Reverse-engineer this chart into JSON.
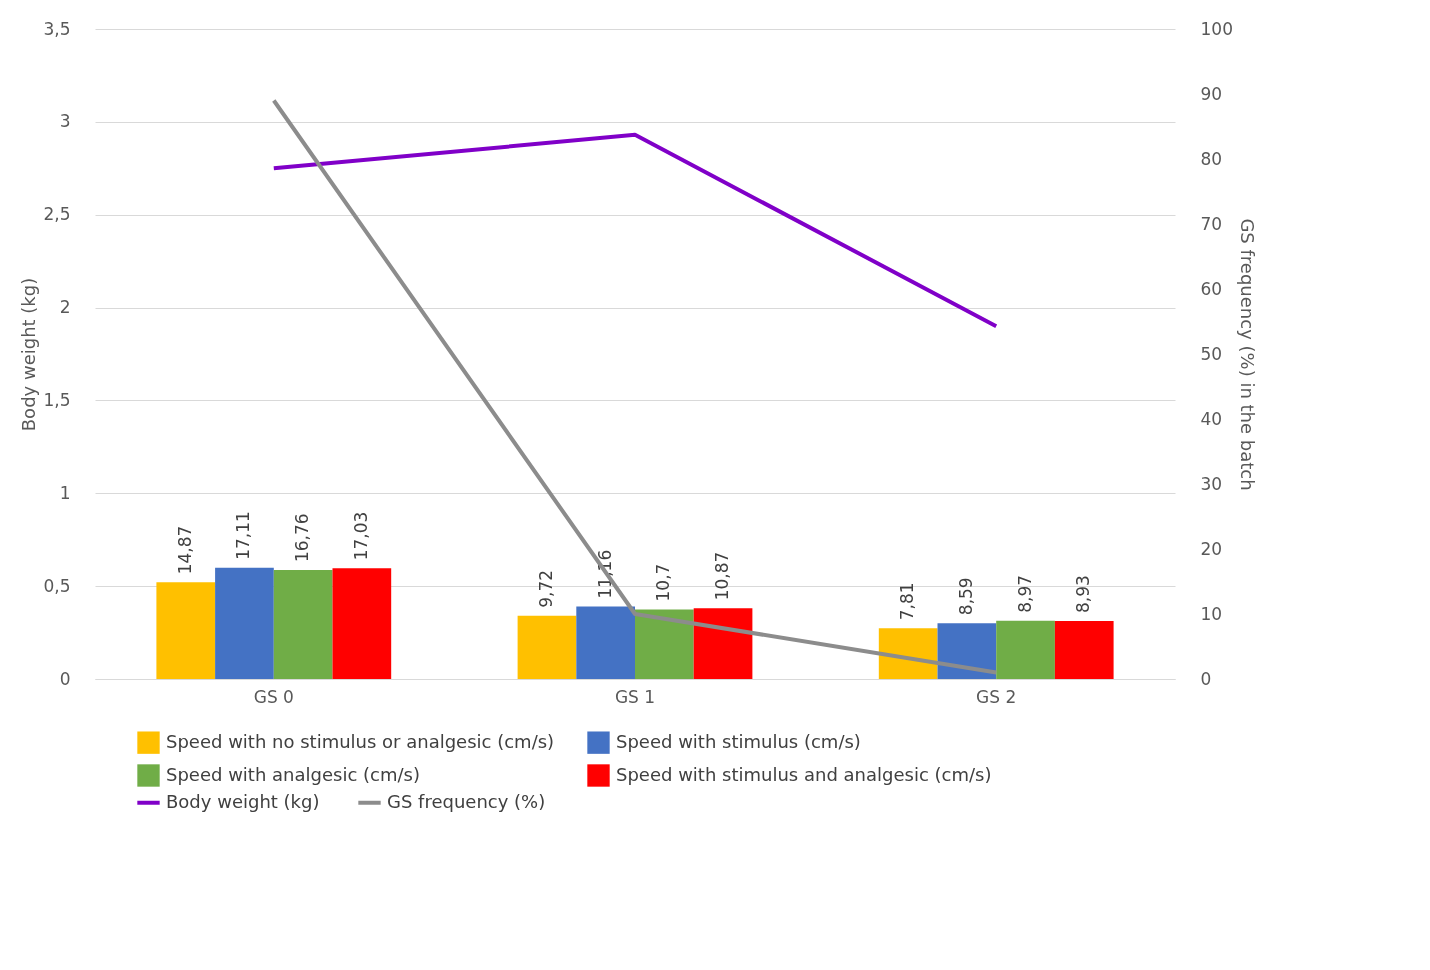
{
  "chart_data": {
    "type": "bar",
    "categories": [
      "GS 0",
      "GS 1",
      "GS 2"
    ],
    "ylabel": "Body weight (kg)",
    "y2label": "GS frequency (%) in the batch",
    "ylim": [
      0,
      3.5
    ],
    "yticks": [
      0,
      {
        "value": 0.5,
        "label": "0,5"
      },
      1,
      {
        "value": 1.5,
        "label": "1,5"
      },
      2,
      {
        "value": 2.5,
        "label": "2,5"
      },
      3,
      {
        "value": 3.5,
        "label": "3,5"
      }
    ],
    "y2lim": [
      0,
      100
    ],
    "y2ticks": [
      0,
      10,
      20,
      30,
      40,
      50,
      60,
      70,
      80,
      90,
      100
    ],
    "grid": "y",
    "legend": "bottom",
    "series": [
      {
        "name": "Speed with no stimulus or analgesic (cm/s)",
        "type": "bar",
        "axis": "y2",
        "color": "#ffc000",
        "values": [
          14.87,
          9.72,
          7.81
        ],
        "value_labels": [
          "14,87",
          "9,72",
          "7,81"
        ]
      },
      {
        "name": "Speed with stimulus (cm/s)",
        "type": "bar",
        "axis": "y2",
        "color": "#4472c4",
        "values": [
          17.11,
          11.16,
          8.59
        ],
        "value_labels": [
          "17,11",
          "11,16",
          "8,59"
        ]
      },
      {
        "name": "Speed with analgesic (cm/s)",
        "type": "bar",
        "axis": "y2",
        "color": "#70ad47",
        "values": [
          16.76,
          10.7,
          8.97
        ],
        "value_labels": [
          "16,76",
          "10,7",
          "8,97"
        ]
      },
      {
        "name": "Speed with stimulus and analgesic (cm/s)",
        "type": "bar",
        "axis": "y2",
        "color": "#ff0000",
        "values": [
          17.03,
          10.87,
          8.93
        ],
        "value_labels": [
          "17,03",
          "10,87",
          "8,93"
        ]
      },
      {
        "name": "Body weight (kg)",
        "type": "line",
        "axis": "y",
        "color": "#8000c8",
        "values": [
          2.75,
          2.93,
          1.9
        ]
      },
      {
        "name": "GS frequency (%)",
        "type": "line",
        "axis": "y2",
        "color": "#8c8c8c",
        "values": [
          89,
          10,
          1
        ]
      }
    ]
  }
}
